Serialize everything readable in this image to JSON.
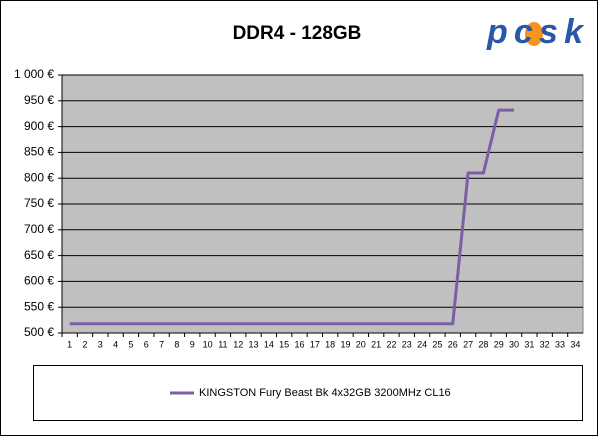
{
  "chart_data": {
    "type": "line",
    "title": "DDR4 - 128GB",
    "logo": "pcsk",
    "categories": [
      "1",
      "2",
      "3",
      "4",
      "5",
      "6",
      "7",
      "8",
      "9",
      "10",
      "11",
      "12",
      "13",
      "14",
      "15",
      "16",
      "17",
      "18",
      "19",
      "20",
      "21",
      "22",
      "23",
      "24",
      "25",
      "26",
      "27",
      "28",
      "29",
      "30",
      "31",
      "32",
      "33",
      "34"
    ],
    "series": [
      {
        "name": "KINGSTON Fury Beast Bk 4x32GB 3200MHz CL16",
        "color": "#7b5fa3",
        "values": [
          518,
          518,
          518,
          518,
          518,
          518,
          518,
          518,
          518,
          518,
          518,
          518,
          518,
          518,
          518,
          518,
          518,
          518,
          518,
          518,
          518,
          518,
          518,
          518,
          518,
          518,
          810,
          810,
          932,
          932,
          null,
          null,
          null,
          null
        ]
      }
    ],
    "ylim": [
      500,
      1000
    ],
    "yticks": [
      {
        "value": 500,
        "label": "500 €"
      },
      {
        "value": 550,
        "label": "550 €"
      },
      {
        "value": 600,
        "label": "600 €"
      },
      {
        "value": 650,
        "label": "650 €"
      },
      {
        "value": 700,
        "label": "700 €"
      },
      {
        "value": 750,
        "label": "750 €"
      },
      {
        "value": 800,
        "label": "800 €"
      },
      {
        "value": 850,
        "label": "850 €"
      },
      {
        "value": 900,
        "label": "900 €"
      },
      {
        "value": 950,
        "label": "950 €"
      },
      {
        "value": 1000,
        "label": "1 000 €"
      }
    ],
    "grid": true,
    "plot_color": "#c0c0c0"
  }
}
